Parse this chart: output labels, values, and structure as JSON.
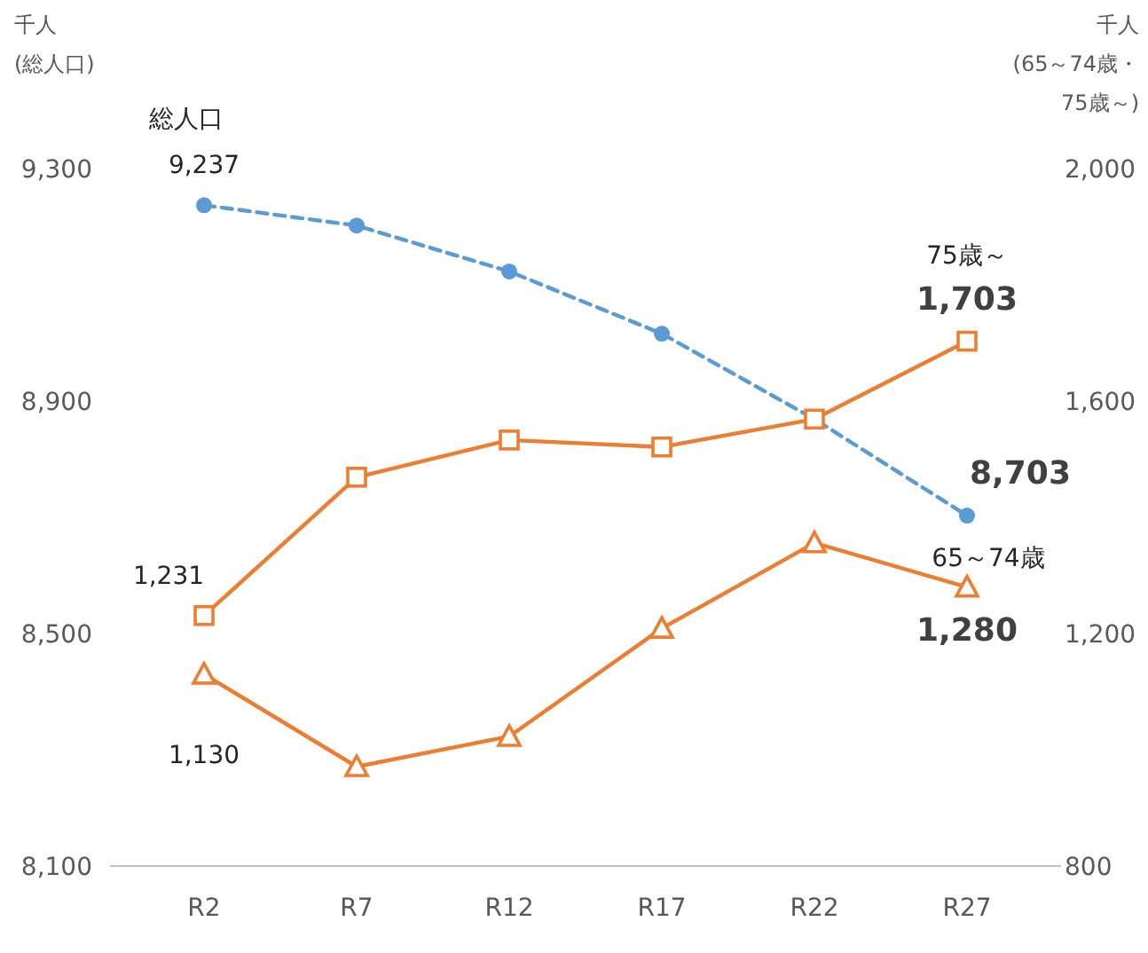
{
  "chart_data": {
    "type": "line",
    "ylabel": "千人(総人口)",
    "y2label": "千人(65～74歳・75歳～)",
    "categories": [
      "R2",
      "R7",
      "R12",
      "R17",
      "R22",
      "R27"
    ],
    "ylim": [
      8100,
      9300
    ],
    "yticks": [
      {
        "value": 8100,
        "label": "8,100"
      },
      {
        "value": 8500,
        "label": "8,500"
      },
      {
        "value": 8900,
        "label": "8,900"
      },
      {
        "value": 9300,
        "label": "9,300"
      }
    ],
    "y2lim": [
      800,
      2000
    ],
    "y2ticks": [
      {
        "value": 800,
        "label": "800"
      },
      {
        "value": 1200,
        "label": "1,200"
      },
      {
        "value": 1600,
        "label": "1,600"
      },
      {
        "value": 2000,
        "label": "2,000"
      }
    ],
    "series": [
      {
        "name": "総人口",
        "color": "#5b9bd5",
        "marker": "circle",
        "line_style": "dashed",
        "values": [
          9237,
          9202,
          9123,
          9016,
          8869,
          8703
        ],
        "value_labels": [
          "9,237",
          null,
          null,
          null,
          null,
          "8,703"
        ]
      },
      {
        "name": "75歳～",
        "color": "#ed7d31",
        "marker": "square",
        "line_style": "solid",
        "axis": "y2",
        "values": [
          1231,
          1469,
          1533,
          1521,
          1569,
          1703
        ],
        "value_labels": [
          "1,231",
          null,
          null,
          null,
          null,
          "1,703"
        ]
      },
      {
        "name": "65～74歳",
        "color": "#ed7d31",
        "marker": "triangle",
        "line_style": "solid",
        "axis": "y2",
        "values": [
          1130,
          971,
          1023,
          1209,
          1356,
          1280
        ],
        "value_labels": [
          "1,130",
          null,
          null,
          null,
          null,
          "1,280"
        ]
      }
    ],
    "grid": false
  }
}
